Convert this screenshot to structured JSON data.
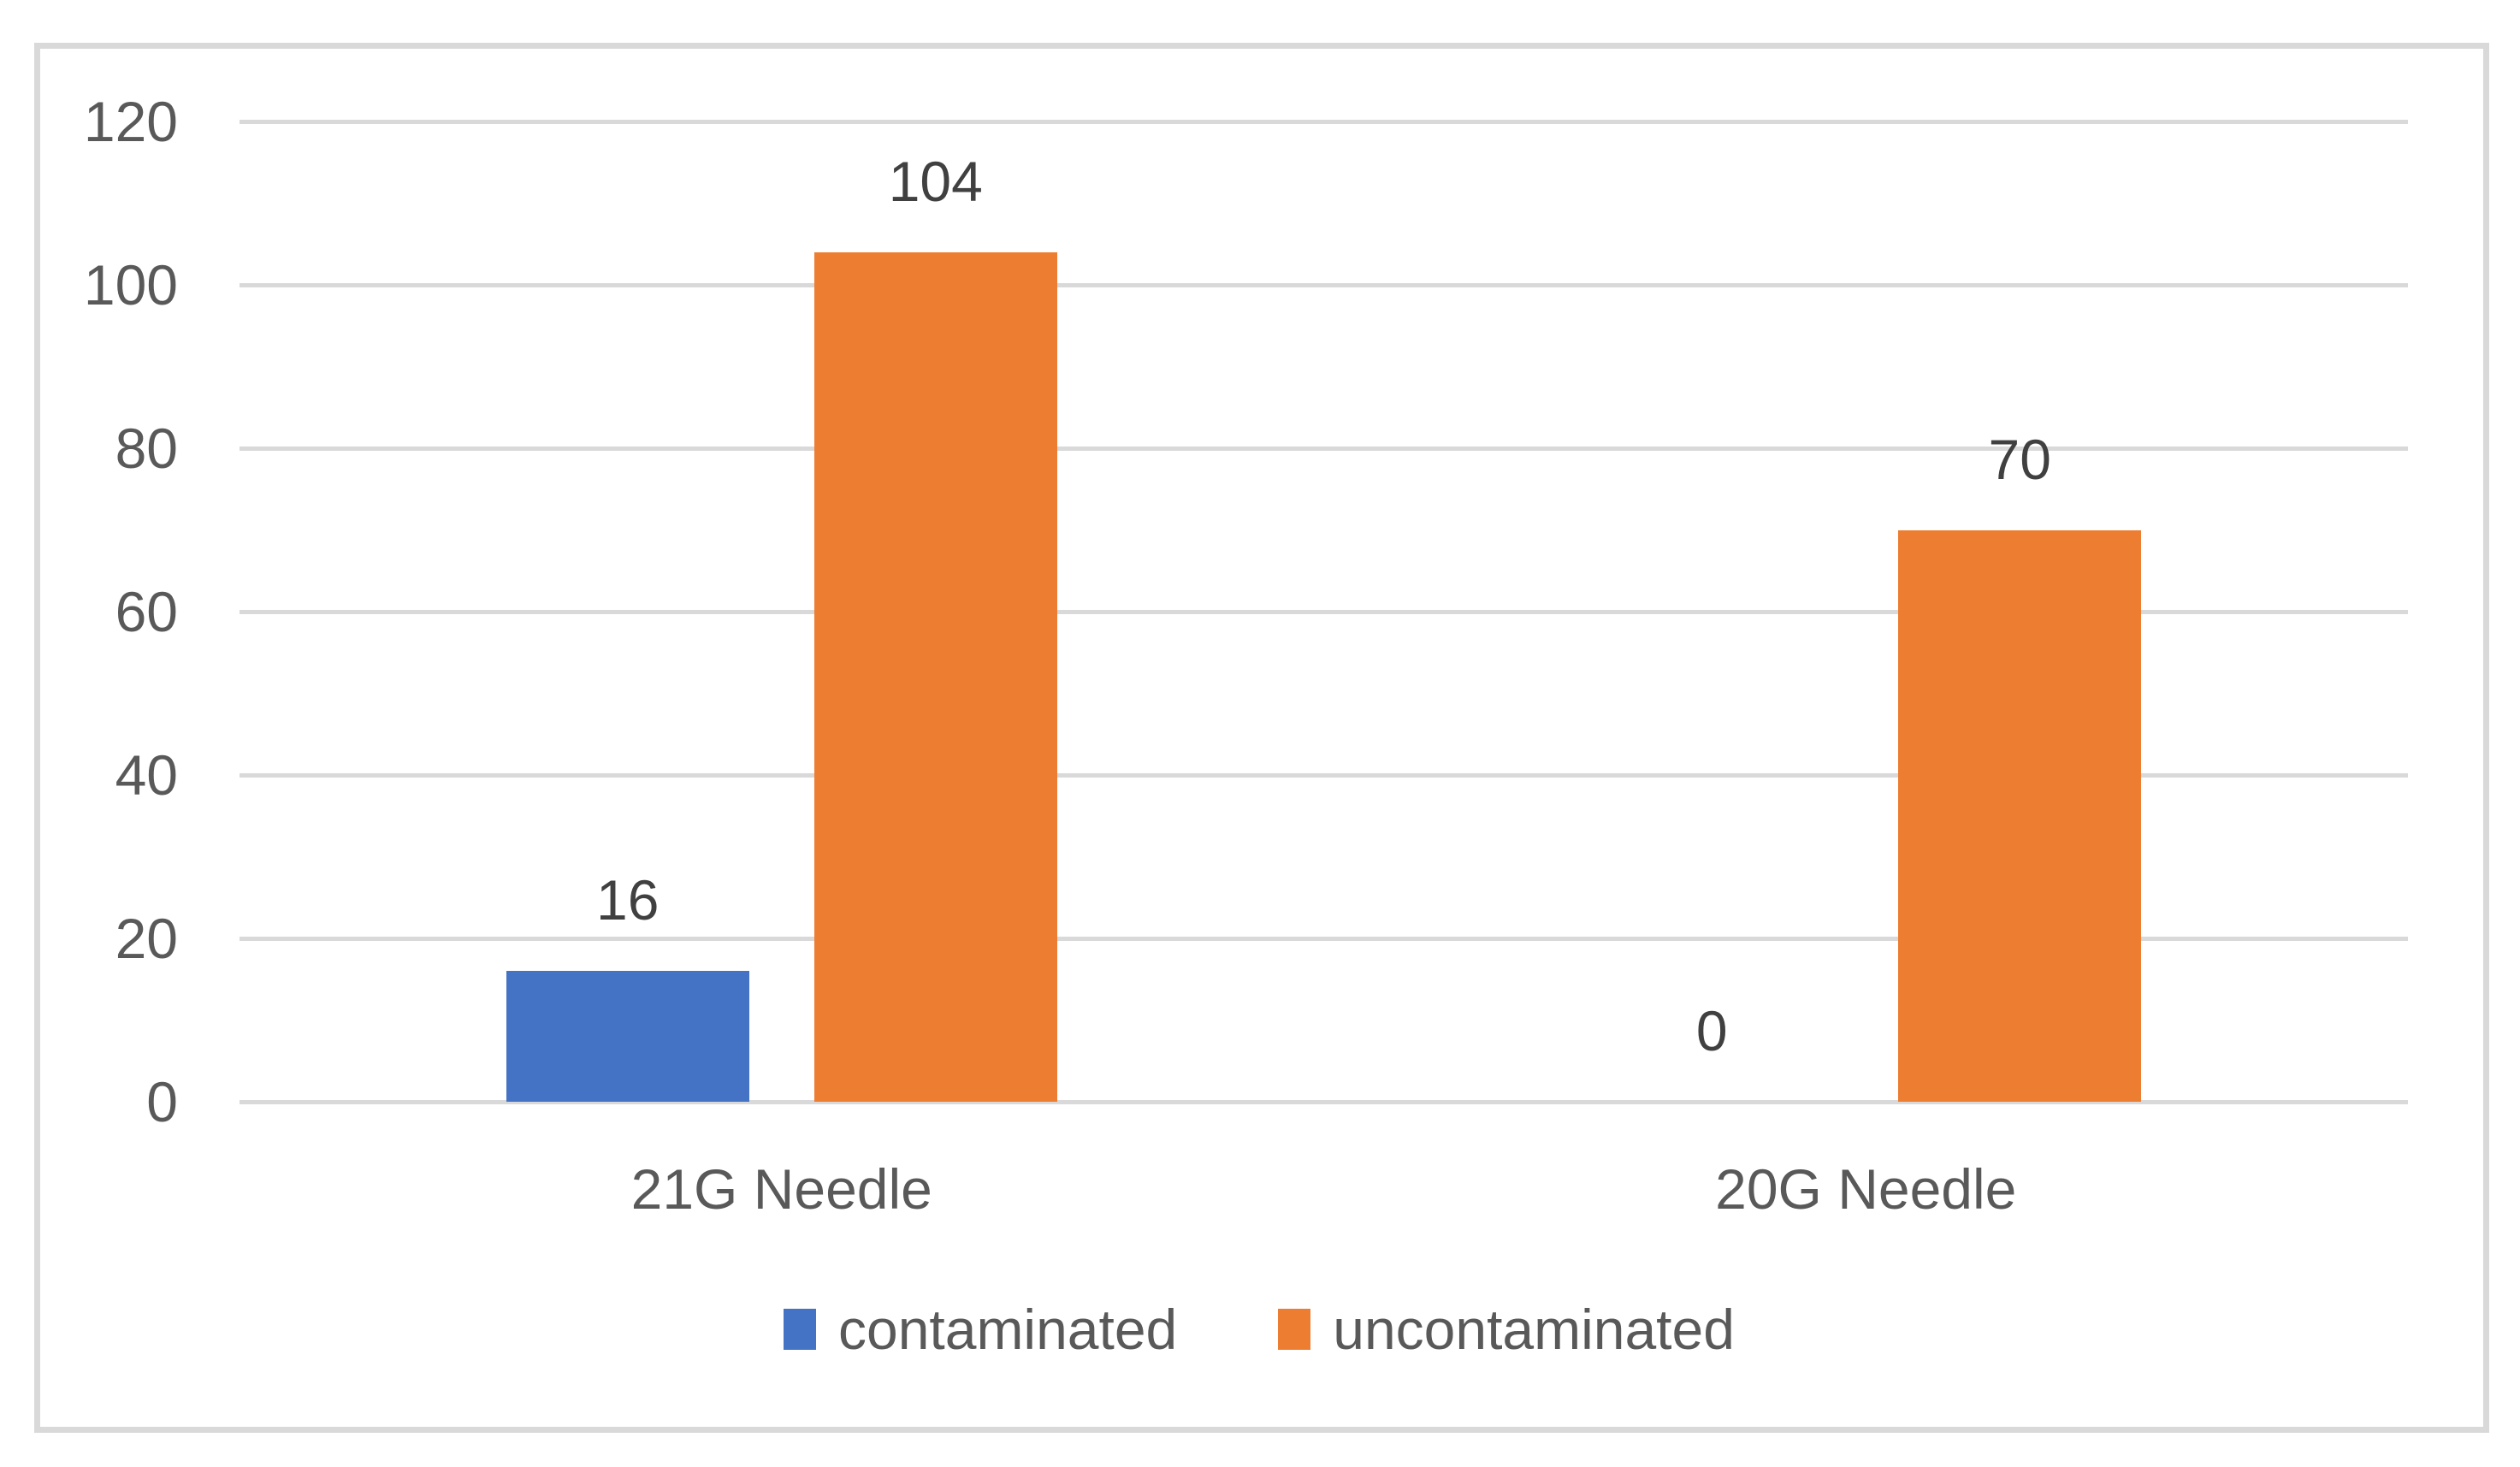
{
  "chart_data": {
    "type": "bar",
    "title": "",
    "xlabel": "",
    "ylabel": "",
    "categories": [
      "21G Needle",
      "20G Needle"
    ],
    "series": [
      {
        "name": "contaminated",
        "color": "#4472C4",
        "values": [
          16,
          0
        ]
      },
      {
        "name": "uncontaminated",
        "color": "#ED7D31",
        "values": [
          104,
          70
        ]
      }
    ],
    "data_labels": true,
    "ylim": [
      0,
      120
    ],
    "ytick_step": 20,
    "yticks": [
      0,
      20,
      40,
      60,
      80,
      100,
      120
    ],
    "grid": true,
    "legend_position": "bottom",
    "gridline_color": "#D9D9D9",
    "frame_color": "#D9D9D9",
    "axis_text_color": "#595959",
    "data_label_color": "#404040"
  }
}
